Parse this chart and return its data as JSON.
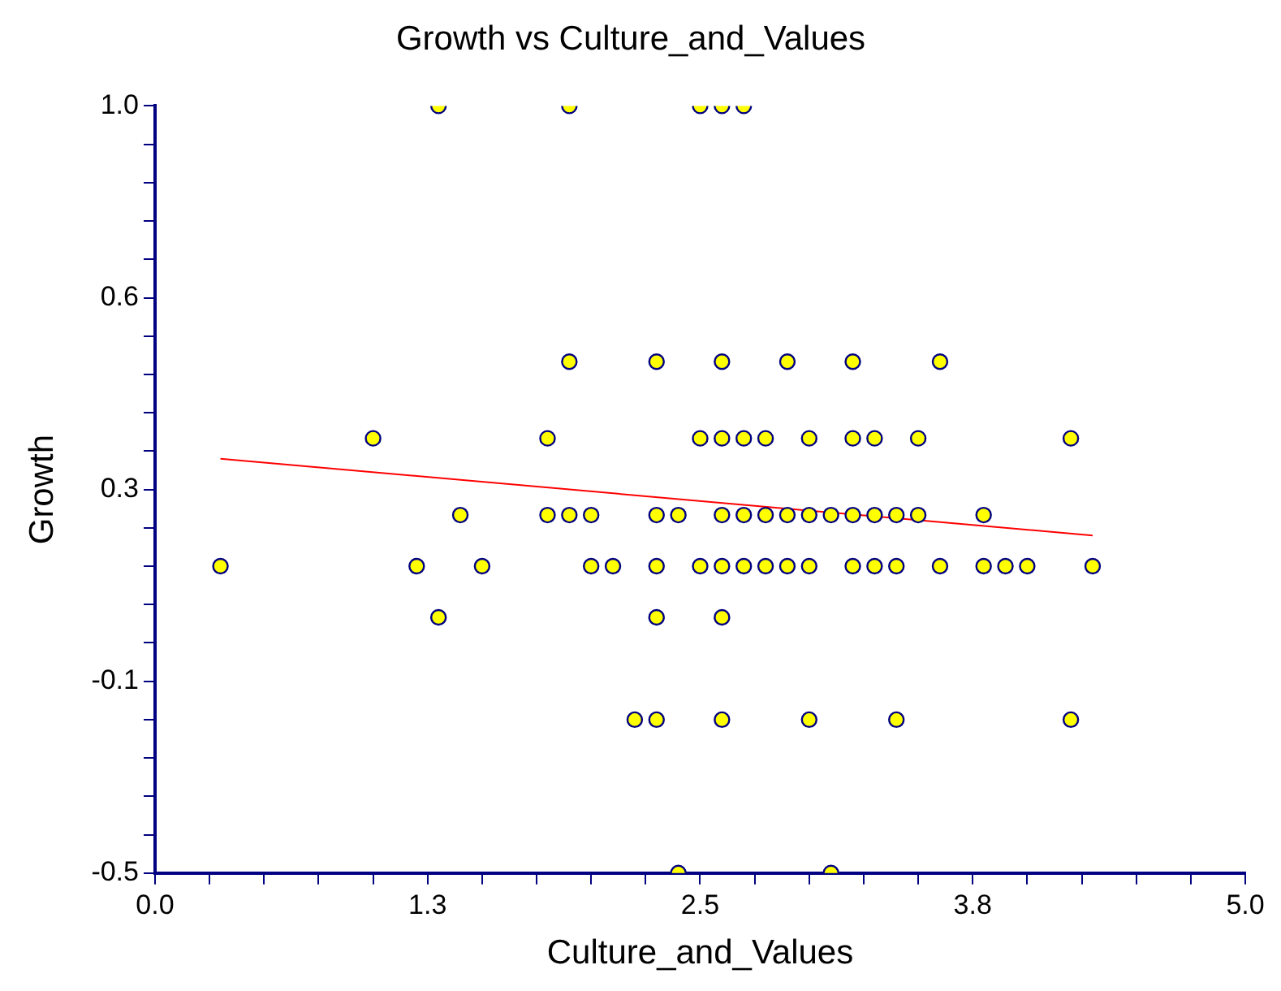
{
  "chart_data": {
    "type": "scatter",
    "title": "Growth vs Culture_and_Values",
    "xlabel": "Culture_and_Values",
    "ylabel": "Growth",
    "xlim": [
      0,
      5
    ],
    "ylim": [
      -0.5,
      1.0
    ],
    "xticks": [
      {
        "value": 0,
        "label": "0.0"
      },
      {
        "value": 0.25,
        "label": null
      },
      {
        "value": 0.5,
        "label": null
      },
      {
        "value": 0.75,
        "label": null
      },
      {
        "value": 1,
        "label": null
      },
      {
        "value": 1.25,
        "label": "1.3"
      },
      {
        "value": 1.5,
        "label": null
      },
      {
        "value": 1.75,
        "label": null
      },
      {
        "value": 2,
        "label": null
      },
      {
        "value": 2.25,
        "label": null
      },
      {
        "value": 2.5,
        "label": "2.5"
      },
      {
        "value": 2.75,
        "label": null
      },
      {
        "value": 3,
        "label": null
      },
      {
        "value": 3.25,
        "label": null
      },
      {
        "value": 3.5,
        "label": null
      },
      {
        "value": 3.75,
        "label": "3.8"
      },
      {
        "value": 4,
        "label": null
      },
      {
        "value": 4.25,
        "label": null
      },
      {
        "value": 4.5,
        "label": null
      },
      {
        "value": 4.75,
        "label": null
      },
      {
        "value": 5,
        "label": "5.0"
      }
    ],
    "yticks": [
      {
        "value": -0.5,
        "label": "-0.5"
      },
      {
        "value": -0.425,
        "label": null
      },
      {
        "value": -0.35,
        "label": null
      },
      {
        "value": -0.275,
        "label": null
      },
      {
        "value": -0.2,
        "label": null
      },
      {
        "value": -0.125,
        "label": "-0.1"
      },
      {
        "value": -0.05,
        "label": null
      },
      {
        "value": 0.025,
        "label": null
      },
      {
        "value": 0.1,
        "label": null
      },
      {
        "value": 0.175,
        "label": null
      },
      {
        "value": 0.25,
        "label": "0.3"
      },
      {
        "value": 0.325,
        "label": null
      },
      {
        "value": 0.4,
        "label": null
      },
      {
        "value": 0.475,
        "label": null
      },
      {
        "value": 0.55,
        "label": null
      },
      {
        "value": 0.625,
        "label": "0.6"
      },
      {
        "value": 0.7,
        "label": null
      },
      {
        "value": 0.775,
        "label": null
      },
      {
        "value": 0.85,
        "label": null
      },
      {
        "value": 0.925,
        "label": null
      },
      {
        "value": 1.0,
        "label": "1.0"
      }
    ],
    "grid": false,
    "legend": false,
    "marker": "circle",
    "series": [
      {
        "type": "scatter",
        "color": "#ffff00",
        "x": [
          1.3,
          1.9,
          2.5,
          2.6,
          2.7,
          1.9,
          2.3,
          2.6,
          2.9,
          3.2,
          3.6,
          1.0,
          1.8,
          2.5,
          2.6,
          2.7,
          2.8,
          3.0,
          3.2,
          3.3,
          3.5,
          4.2,
          1.4,
          1.8,
          1.9,
          2.0,
          2.3,
          2.4,
          2.6,
          2.7,
          2.8,
          2.9,
          3.0,
          3.1,
          3.2,
          3.3,
          3.4,
          3.5,
          3.8,
          0.3,
          1.2,
          1.5,
          2.0,
          2.1,
          2.3,
          2.5,
          2.6,
          2.7,
          2.8,
          2.9,
          3.0,
          3.2,
          3.3,
          3.4,
          3.6,
          3.8,
          3.9,
          4.0,
          4.3,
          1.3,
          2.3,
          2.6,
          2.2,
          2.3,
          2.6,
          3.0,
          3.4,
          4.2,
          2.4,
          3.1
        ],
        "values": [
          1.0,
          1.0,
          1.0,
          1.0,
          1.0,
          0.5,
          0.5,
          0.5,
          0.5,
          0.5,
          0.5,
          0.35,
          0.35,
          0.35,
          0.35,
          0.35,
          0.35,
          0.35,
          0.35,
          0.35,
          0.35,
          0.35,
          0.2,
          0.2,
          0.2,
          0.2,
          0.2,
          0.2,
          0.2,
          0.2,
          0.2,
          0.2,
          0.2,
          0.2,
          0.2,
          0.2,
          0.2,
          0.2,
          0.2,
          0.1,
          0.1,
          0.1,
          0.1,
          0.1,
          0.1,
          0.1,
          0.1,
          0.1,
          0.1,
          0.1,
          0.1,
          0.1,
          0.1,
          0.1,
          0.1,
          0.1,
          0.1,
          0.1,
          0.1,
          0.0,
          0.0,
          0.0,
          -0.2,
          -0.2,
          -0.2,
          -0.2,
          -0.2,
          -0.2,
          -0.5,
          -0.5
        ]
      },
      {
        "type": "line",
        "color": "#ff0000",
        "marker": "none",
        "line_style": "solid",
        "x": [
          0.3,
          4.3
        ],
        "values": [
          0.31,
          0.16
        ]
      }
    ]
  }
}
